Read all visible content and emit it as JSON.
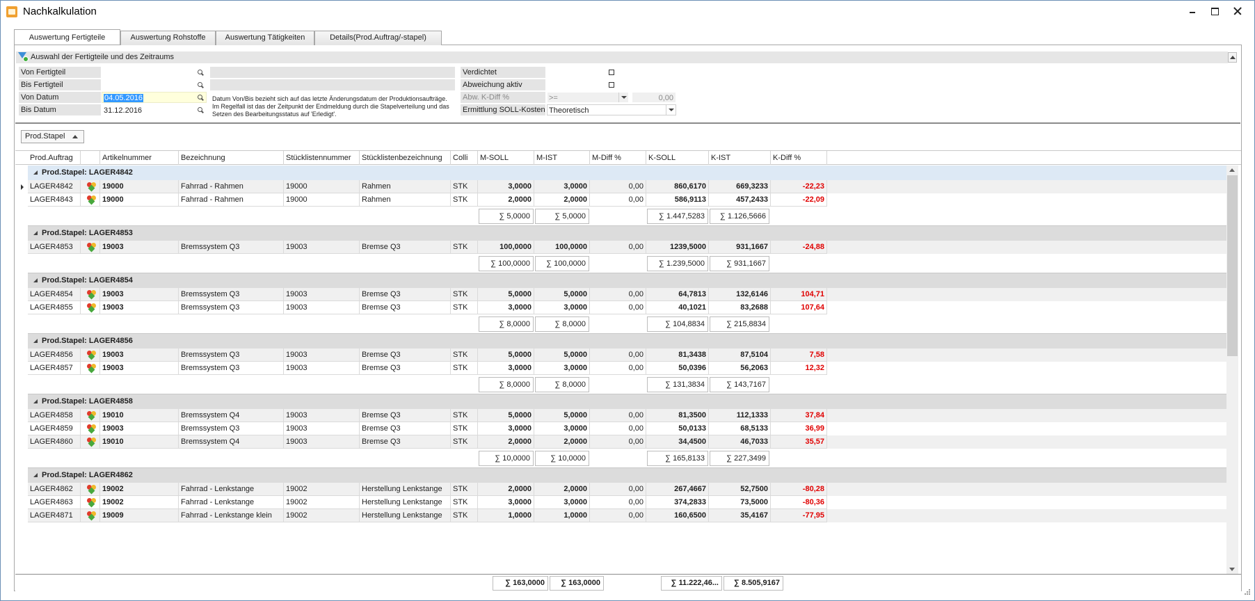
{
  "window": {
    "title": "Nachkalkulation"
  },
  "tabs": [
    {
      "label": "Auswertung Fertigteile",
      "active": true
    },
    {
      "label": "Auswertung Rohstoffe",
      "active": false
    },
    {
      "label": "Auswertung Tätigkeiten",
      "active": false
    },
    {
      "label": "Details(Prod.Auftrag/-stapel)",
      "active": false
    }
  ],
  "filter": {
    "group_title": "Auswahl der Fertigteile und des Zeitraums",
    "von_fertigteil_label": "Von Fertigteil",
    "von_fertigteil_value": "",
    "bis_fertigteil_label": "Bis Fertigteil",
    "bis_fertigteil_value": "",
    "von_datum_label": "Von Datum",
    "von_datum_value": "04.05.2016",
    "bis_datum_label": "Bis Datum",
    "bis_datum_value": "31.12.2016",
    "info_text": "Datum Von/Bis bezieht sich auf das letzte Änderungsdatum der Produktionsaufträge. Im Regelfall ist das der Zeitpunkt der Endmeldung durch die Stapelverteilung und das Setzen des Bearbeitungsstatus auf 'Erledigt'.",
    "verdichtet_label": "Verdichtet",
    "verdichtet_checked": false,
    "abweichung_label": "Abweichung aktiv",
    "abweichung_checked": false,
    "abw_kdiff_label": "Abw. K-Diff %",
    "abw_kdiff_operator": ">=",
    "abw_kdiff_value": "0,00",
    "ermittlung_label": "Ermittlung SOLL-Kosten",
    "ermittlung_value": "Theoretisch"
  },
  "group_panel": {
    "chip_label": "Prod.Stapel"
  },
  "grid": {
    "columns": [
      "Prod.Auftrag",
      "",
      "Artikelnummer",
      "Bezeichnung",
      "Stücklistennummer",
      "Stücklistenbezeichnung",
      "Colli",
      "M-SOLL",
      "M-IST",
      "M-Diff %",
      "K-SOLL",
      "K-IST",
      "K-Diff %"
    ],
    "groups": [
      {
        "label": "Prod.Stapel: LAGER4842",
        "selected": true,
        "rows": [
          [
            "LAGER4842",
            "19000",
            "Fahrrad - Rahmen",
            "19000",
            "Rahmen",
            "STK",
            "3,0000",
            "3,0000",
            "0,00",
            "860,6170",
            "669,3233",
            "-22,23"
          ],
          [
            "LAGER4843",
            "19000",
            "Fahrrad - Rahmen",
            "19000",
            "Rahmen",
            "STK",
            "2,0000",
            "2,0000",
            "0,00",
            "586,9113",
            "457,2433",
            "-22,09"
          ]
        ],
        "sums": [
          "∑ 5,0000",
          "∑ 5,0000",
          "∑ 1.447,5283",
          "∑ 1.126,5666"
        ]
      },
      {
        "label": "Prod.Stapel: LAGER4853",
        "selected": false,
        "rows": [
          [
            "LAGER4853",
            "19003",
            "Bremssystem Q3",
            "19003",
            "Bremse Q3",
            "STK",
            "100,0000",
            "100,0000",
            "0,00",
            "1239,5000",
            "931,1667",
            "-24,88"
          ]
        ],
        "sums": [
          "∑ 100,0000",
          "∑ 100,0000",
          "∑ 1.239,5000",
          "∑ 931,1667"
        ]
      },
      {
        "label": "Prod.Stapel: LAGER4854",
        "selected": false,
        "rows": [
          [
            "LAGER4854",
            "19003",
            "Bremssystem Q3",
            "19003",
            "Bremse Q3",
            "STK",
            "5,0000",
            "5,0000",
            "0,00",
            "64,7813",
            "132,6146",
            "104,71"
          ],
          [
            "LAGER4855",
            "19003",
            "Bremssystem Q3",
            "19003",
            "Bremse Q3",
            "STK",
            "3,0000",
            "3,0000",
            "0,00",
            "40,1021",
            "83,2688",
            "107,64"
          ]
        ],
        "sums": [
          "∑ 8,0000",
          "∑ 8,0000",
          "∑ 104,8834",
          "∑ 215,8834"
        ]
      },
      {
        "label": "Prod.Stapel: LAGER4856",
        "selected": false,
        "rows": [
          [
            "LAGER4856",
            "19003",
            "Bremssystem Q3",
            "19003",
            "Bremse Q3",
            "STK",
            "5,0000",
            "5,0000",
            "0,00",
            "81,3438",
            "87,5104",
            "7,58"
          ],
          [
            "LAGER4857",
            "19003",
            "Bremssystem Q3",
            "19003",
            "Bremse Q3",
            "STK",
            "3,0000",
            "3,0000",
            "0,00",
            "50,0396",
            "56,2063",
            "12,32"
          ]
        ],
        "sums": [
          "∑ 8,0000",
          "∑ 8,0000",
          "∑ 131,3834",
          "∑ 143,7167"
        ]
      },
      {
        "label": "Prod.Stapel: LAGER4858",
        "selected": false,
        "rows": [
          [
            "LAGER4858",
            "19010",
            "Bremssystem Q4",
            "19003",
            "Bremse Q3",
            "STK",
            "5,0000",
            "5,0000",
            "0,00",
            "81,3500",
            "112,1333",
            "37,84"
          ],
          [
            "LAGER4859",
            "19003",
            "Bremssystem Q3",
            "19003",
            "Bremse Q3",
            "STK",
            "3,0000",
            "3,0000",
            "0,00",
            "50,0133",
            "68,5133",
            "36,99"
          ],
          [
            "LAGER4860",
            "19010",
            "Bremssystem Q4",
            "19003",
            "Bremse Q3",
            "STK",
            "2,0000",
            "2,0000",
            "0,00",
            "34,4500",
            "46,7033",
            "35,57"
          ]
        ],
        "sums": [
          "∑ 10,0000",
          "∑ 10,0000",
          "∑ 165,8133",
          "∑ 227,3499"
        ]
      },
      {
        "label": "Prod.Stapel: LAGER4862",
        "selected": false,
        "rows": [
          [
            "LAGER4862",
            "19002",
            "Fahrrad - Lenkstange",
            "19002",
            "Herstellung Lenkstange",
            "STK",
            "2,0000",
            "2,0000",
            "0,00",
            "267,4667",
            "52,7500",
            "-80,28"
          ],
          [
            "LAGER4863",
            "19002",
            "Fahrrad - Lenkstange",
            "19002",
            "Herstellung Lenkstange",
            "STK",
            "3,0000",
            "3,0000",
            "0,00",
            "374,2833",
            "73,5000",
            "-80,36"
          ],
          [
            "LAGER4871",
            "19009",
            "Fahrrad - Lenkstange klein",
            "19002",
            "Herstellung Lenkstange",
            "STK",
            "1,0000",
            "1,0000",
            "0,00",
            "160,6500",
            "35,4167",
            "-77,95"
          ]
        ],
        "sums": []
      }
    ],
    "totals": [
      "∑ 163,0000",
      "∑ 163,0000",
      "∑ 11.222,46...",
      "∑ 8.505,9167"
    ]
  }
}
